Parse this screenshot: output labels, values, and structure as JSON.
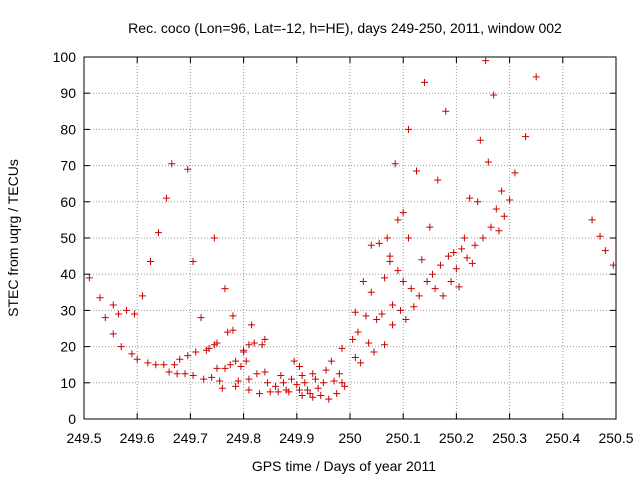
{
  "chart_data": {
    "type": "scatter",
    "title": "Rec. coco (Lon=96, Lat=-12, h=HE), days 249-250, 2011, window 002",
    "xlabel": "GPS time / Days of year 2011",
    "ylabel": "STEC from uqrg / TECUs",
    "xlim": [
      249.5,
      250.5
    ],
    "ylim": [
      0,
      100
    ],
    "xticks": [
      249.5,
      249.6,
      249.7,
      249.8,
      249.9,
      250,
      250.1,
      250.2,
      250.3,
      250.4,
      250.5
    ],
    "xtick_labels": [
      "249.5",
      "249.6",
      "249.7",
      "249.8",
      "249.9",
      "250",
      "250.1",
      "250.2",
      "250.3",
      "250.4",
      "250.5"
    ],
    "yticks": [
      0,
      10,
      20,
      30,
      40,
      50,
      60,
      70,
      80,
      90,
      100
    ],
    "ytick_labels": [
      "0",
      "10",
      "20",
      "30",
      "40",
      "50",
      "60",
      "70",
      "80",
      "90",
      "100"
    ],
    "grid": true,
    "marker": "+",
    "marker_color": "#cc0000",
    "points": [
      [
        249.51,
        39
      ],
      [
        249.53,
        33.5
      ],
      [
        249.54,
        28
      ],
      [
        249.555,
        31.5
      ],
      [
        249.555,
        23.5
      ],
      [
        249.565,
        29
      ],
      [
        249.57,
        20
      ],
      [
        249.58,
        30
      ],
      [
        249.59,
        18
      ],
      [
        249.595,
        29
      ],
      [
        249.6,
        16.5
      ],
      [
        249.61,
        34
      ],
      [
        249.62,
        15.5
      ],
      [
        249.625,
        43.5
      ],
      [
        249.635,
        15
      ],
      [
        249.64,
        51.5
      ],
      [
        249.65,
        15
      ],
      [
        249.655,
        61
      ],
      [
        249.665,
        70.5
      ],
      [
        249.66,
        13
      ],
      [
        249.67,
        15
      ],
      [
        249.675,
        12.5
      ],
      [
        249.68,
        16.5
      ],
      [
        249.69,
        12.5
      ],
      [
        249.695,
        69
      ],
      [
        249.695,
        17.5
      ],
      [
        249.705,
        43.5
      ],
      [
        249.705,
        12
      ],
      [
        249.71,
        18.5
      ],
      [
        249.72,
        28
      ],
      [
        249.725,
        11
      ],
      [
        249.73,
        19
      ],
      [
        249.735,
        19.5
      ],
      [
        249.74,
        11.5
      ],
      [
        249.745,
        50
      ],
      [
        249.745,
        20.5
      ],
      [
        249.75,
        21
      ],
      [
        249.75,
        14
      ],
      [
        249.755,
        10.5
      ],
      [
        249.76,
        8.5
      ],
      [
        249.765,
        36
      ],
      [
        249.765,
        14
      ],
      [
        249.77,
        24
      ],
      [
        249.775,
        15
      ],
      [
        249.78,
        24.5
      ],
      [
        249.78,
        28.5
      ],
      [
        249.785,
        16
      ],
      [
        249.785,
        9
      ],
      [
        249.79,
        10.5
      ],
      [
        249.795,
        14.5
      ],
      [
        249.8,
        19
      ],
      [
        249.8,
        18.5
      ],
      [
        249.805,
        16
      ],
      [
        249.81,
        20.5
      ],
      [
        249.81,
        11
      ],
      [
        249.81,
        8
      ],
      [
        249.815,
        26
      ],
      [
        249.82,
        21
      ],
      [
        249.825,
        12.5
      ],
      [
        249.83,
        7
      ],
      [
        249.835,
        20.5
      ],
      [
        249.84,
        22
      ],
      [
        249.84,
        13
      ],
      [
        249.845,
        10
      ],
      [
        249.85,
        7.5
      ],
      [
        249.86,
        9
      ],
      [
        249.865,
        7.5
      ],
      [
        249.87,
        12
      ],
      [
        249.875,
        10
      ],
      [
        249.88,
        8
      ],
      [
        249.885,
        7.5
      ],
      [
        249.89,
        11
      ],
      [
        249.895,
        16
      ],
      [
        249.9,
        9.5
      ],
      [
        249.905,
        14.5
      ],
      [
        249.905,
        8
      ],
      [
        249.91,
        12
      ],
      [
        249.91,
        6.5
      ],
      [
        249.915,
        10
      ],
      [
        249.92,
        8
      ],
      [
        249.925,
        7
      ],
      [
        249.93,
        12.5
      ],
      [
        249.93,
        6
      ],
      [
        249.935,
        11
      ],
      [
        249.94,
        8.5
      ],
      [
        249.945,
        6.5
      ],
      [
        249.95,
        10
      ],
      [
        249.955,
        13.5
      ],
      [
        249.96,
        5.5
      ],
      [
        249.965,
        16
      ],
      [
        249.97,
        10.5
      ],
      [
        249.975,
        7
      ],
      [
        249.98,
        12.5
      ],
      [
        249.985,
        19.5
      ],
      [
        249.985,
        10
      ],
      [
        249.99,
        9
      ],
      [
        250.005,
        22
      ],
      [
        250.01,
        29.5
      ],
      [
        250.01,
        17
      ],
      [
        250.015,
        24
      ],
      [
        250.02,
        15.5
      ],
      [
        250.025,
        38
      ],
      [
        250.03,
        28.5
      ],
      [
        250.035,
        21
      ],
      [
        250.04,
        48
      ],
      [
        250.04,
        35
      ],
      [
        250.045,
        18.5
      ],
      [
        250.05,
        27.5
      ],
      [
        250.055,
        48.5
      ],
      [
        250.06,
        29
      ],
      [
        250.065,
        39
      ],
      [
        250.065,
        20.5
      ],
      [
        250.07,
        50
      ],
      [
        250.075,
        45
      ],
      [
        250.075,
        43.5
      ],
      [
        250.08,
        31.5
      ],
      [
        250.08,
        26
      ],
      [
        250.085,
        70.5
      ],
      [
        250.09,
        55
      ],
      [
        250.09,
        41
      ],
      [
        250.095,
        30
      ],
      [
        250.1,
        57
      ],
      [
        250.1,
        38
      ],
      [
        250.105,
        27.5
      ],
      [
        250.11,
        80
      ],
      [
        250.11,
        50
      ],
      [
        250.115,
        36
      ],
      [
        250.12,
        31
      ],
      [
        250.125,
        68.5
      ],
      [
        250.13,
        34
      ],
      [
        250.135,
        44
      ],
      [
        250.14,
        93
      ],
      [
        250.145,
        38
      ],
      [
        250.15,
        53
      ],
      [
        250.155,
        40
      ],
      [
        250.16,
        36
      ],
      [
        250.165,
        66
      ],
      [
        250.17,
        42.5
      ],
      [
        250.175,
        34
      ],
      [
        250.18,
        85
      ],
      [
        250.185,
        45
      ],
      [
        250.19,
        38
      ],
      [
        250.195,
        46
      ],
      [
        250.2,
        41.5
      ],
      [
        250.205,
        36.5
      ],
      [
        250.21,
        47
      ],
      [
        250.215,
        50
      ],
      [
        250.22,
        44.5
      ],
      [
        250.225,
        61
      ],
      [
        250.23,
        43
      ],
      [
        250.235,
        48
      ],
      [
        250.24,
        60
      ],
      [
        250.245,
        77
      ],
      [
        250.25,
        50
      ],
      [
        250.255,
        99
      ],
      [
        250.26,
        71
      ],
      [
        250.265,
        53
      ],
      [
        250.27,
        89.5
      ],
      [
        250.275,
        58
      ],
      [
        250.28,
        52
      ],
      [
        250.285,
        63
      ],
      [
        250.29,
        56
      ],
      [
        250.3,
        60.5
      ],
      [
        250.31,
        68
      ],
      [
        250.33,
        78
      ],
      [
        250.35,
        94.5
      ],
      [
        250.455,
        55
      ],
      [
        250.47,
        50.5
      ],
      [
        250.48,
        46.5
      ],
      [
        250.495,
        42.5
      ]
    ]
  }
}
